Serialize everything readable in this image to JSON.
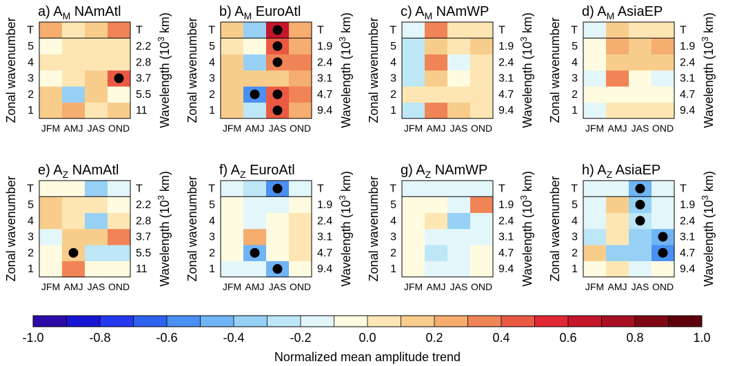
{
  "chart_data": {
    "type": "heatmap",
    "shared": {
      "x_categories": [
        "JFM",
        "AMJ",
        "JAS",
        "OND"
      ],
      "y_categories": [
        "1",
        "2",
        "3",
        "4",
        "5",
        "T"
      ],
      "ylabel_left": "Zonal wavenumber",
      "ylabel_right_prefix": "Wavelength (10",
      "ylabel_right_exp": "3",
      "ylabel_right_suffix": " km)",
      "grid": false,
      "significance_marker": "black dot"
    },
    "panels": [
      {
        "letter": "a)",
        "quantity": "A",
        "quantity_sub": "M",
        "region": "NAmAtl",
        "wavelength_labels": [
          "11",
          "5.5",
          "3.7",
          "2.8",
          "2.2",
          "T"
        ],
        "values": [
          [
            0.15,
            0.25,
            0.05,
            0.15
          ],
          [
            0.15,
            -0.35,
            0.15,
            -0.05
          ],
          [
            -0.05,
            0.05,
            0.15,
            0.45
          ],
          [
            0.05,
            0.05,
            0.05,
            0.05
          ],
          [
            -0.05,
            0.05,
            0.05,
            0.05
          ],
          [
            0.25,
            0.05,
            0.15,
            0.35
          ]
        ],
        "significant": [
          [
            false,
            false,
            false,
            false
          ],
          [
            false,
            false,
            false,
            false
          ],
          [
            false,
            false,
            false,
            true
          ],
          [
            false,
            false,
            false,
            false
          ],
          [
            false,
            false,
            false,
            false
          ],
          [
            false,
            false,
            false,
            false
          ]
        ]
      },
      {
        "letter": "b)",
        "quantity": "A",
        "quantity_sub": "M",
        "region": "EuroAtl",
        "wavelength_labels": [
          "9.4",
          "4.7",
          "3.1",
          "2.4",
          "1.9",
          "T"
        ],
        "values": [
          [
            0.15,
            -0.25,
            0.45,
            0.25
          ],
          [
            0.15,
            -0.55,
            0.45,
            0.35
          ],
          [
            0.15,
            0.15,
            0.15,
            0.25
          ],
          [
            0.15,
            -0.35,
            0.35,
            0.35
          ],
          [
            0.05,
            -0.05,
            0.45,
            0.25
          ],
          [
            0.15,
            -0.35,
            0.65,
            0.25
          ]
        ],
        "significant": [
          [
            false,
            false,
            true,
            false
          ],
          [
            false,
            true,
            true,
            false
          ],
          [
            false,
            false,
            false,
            false
          ],
          [
            false,
            false,
            true,
            false
          ],
          [
            false,
            false,
            true,
            false
          ],
          [
            false,
            false,
            true,
            false
          ]
        ]
      },
      {
        "letter": "c)",
        "quantity": "A",
        "quantity_sub": "M",
        "region": "NAmWP",
        "wavelength_labels": [
          "9.4",
          "4.7",
          "3.1",
          "2.4",
          "1.9",
          "T"
        ],
        "values": [
          [
            -0.25,
            0.35,
            0.15,
            0.05
          ],
          [
            0.05,
            0.05,
            0.05,
            0.05
          ],
          [
            -0.25,
            0.15,
            -0.05,
            0.05
          ],
          [
            -0.25,
            0.35,
            -0.15,
            0.05
          ],
          [
            -0.25,
            0.15,
            0.05,
            0.15
          ],
          [
            -0.15,
            0.35,
            0.05,
            0.05
          ]
        ],
        "significant": [
          [
            false,
            false,
            false,
            false
          ],
          [
            false,
            false,
            false,
            false
          ],
          [
            false,
            false,
            false,
            false
          ],
          [
            false,
            false,
            false,
            false
          ],
          [
            false,
            false,
            false,
            false
          ],
          [
            false,
            false,
            false,
            false
          ]
        ]
      },
      {
        "letter": "d)",
        "quantity": "A",
        "quantity_sub": "M",
        "region": "AsiaEP",
        "wavelength_labels": [
          "9.4",
          "4.7",
          "3.1",
          "2.4",
          "1.9",
          "T"
        ],
        "values": [
          [
            -0.15,
            0.05,
            0.05,
            0.05
          ],
          [
            -0.05,
            -0.05,
            -0.05,
            -0.05
          ],
          [
            -0.15,
            0.35,
            -0.05,
            -0.15
          ],
          [
            -0.05,
            0.15,
            0.15,
            0.15
          ],
          [
            -0.05,
            0.25,
            0.15,
            0.25
          ],
          [
            -0.15,
            0.15,
            0.05,
            0.05
          ]
        ],
        "significant": [
          [
            false,
            false,
            false,
            false
          ],
          [
            false,
            false,
            false,
            false
          ],
          [
            false,
            false,
            false,
            false
          ],
          [
            false,
            false,
            false,
            false
          ],
          [
            false,
            false,
            false,
            false
          ],
          [
            false,
            false,
            false,
            false
          ]
        ]
      },
      {
        "letter": "e)",
        "quantity": "A",
        "quantity_sub": "Z",
        "region": "NAmAtl",
        "wavelength_labels": [
          "11",
          "5.5",
          "3.7",
          "2.8",
          "2.2",
          "T"
        ],
        "values": [
          [
            -0.05,
            0.35,
            -0.05,
            -0.05
          ],
          [
            -0.05,
            0.15,
            -0.25,
            -0.25
          ],
          [
            -0.15,
            0.15,
            0.15,
            0.35
          ],
          [
            0.15,
            0.05,
            -0.35,
            0.05
          ],
          [
            0.15,
            0.05,
            0.05,
            -0.05
          ],
          [
            -0.05,
            -0.05,
            -0.35,
            -0.15
          ]
        ],
        "significant": [
          [
            false,
            false,
            false,
            false
          ],
          [
            false,
            true,
            false,
            false
          ],
          [
            false,
            false,
            false,
            false
          ],
          [
            false,
            false,
            false,
            false
          ],
          [
            false,
            false,
            false,
            false
          ],
          [
            false,
            false,
            false,
            false
          ]
        ]
      },
      {
        "letter": "f)",
        "quantity": "A",
        "quantity_sub": "Z",
        "region": "EuroAtl",
        "wavelength_labels": [
          "9.4",
          "4.7",
          "3.1",
          "2.4",
          "1.9",
          "T"
        ],
        "values": [
          [
            -0.15,
            -0.15,
            -0.45,
            -0.05
          ],
          [
            -0.05,
            -0.45,
            -0.05,
            0.05
          ],
          [
            -0.05,
            0.25,
            -0.05,
            0.05
          ],
          [
            -0.05,
            -0.15,
            -0.05,
            0.05
          ],
          [
            -0.05,
            -0.15,
            -0.15,
            -0.05
          ],
          [
            -0.15,
            -0.25,
            -0.55,
            -0.15
          ]
        ],
        "significant": [
          [
            false,
            false,
            true,
            false
          ],
          [
            false,
            true,
            false,
            false
          ],
          [
            false,
            false,
            false,
            false
          ],
          [
            false,
            false,
            false,
            false
          ],
          [
            false,
            false,
            false,
            false
          ],
          [
            false,
            false,
            true,
            false
          ]
        ]
      },
      {
        "letter": "g)",
        "quantity": "A",
        "quantity_sub": "Z",
        "region": "NAmWP",
        "wavelength_labels": [
          "9.4",
          "4.7",
          "3.1",
          "2.4",
          "1.9",
          "T"
        ],
        "values": [
          [
            -0.05,
            -0.15,
            -0.15,
            -0.05
          ],
          [
            -0.05,
            -0.25,
            -0.15,
            -0.05
          ],
          [
            -0.05,
            -0.15,
            -0.15,
            -0.15
          ],
          [
            -0.05,
            0.05,
            -0.35,
            -0.15
          ],
          [
            -0.05,
            -0.05,
            -0.15,
            0.35
          ],
          [
            -0.15,
            -0.15,
            -0.15,
            -0.15
          ]
        ],
        "significant": [
          [
            false,
            false,
            false,
            false
          ],
          [
            false,
            false,
            false,
            false
          ],
          [
            false,
            false,
            false,
            false
          ],
          [
            false,
            false,
            false,
            false
          ],
          [
            false,
            false,
            false,
            false
          ],
          [
            false,
            false,
            false,
            false
          ]
        ]
      },
      {
        "letter": "h)",
        "quantity": "A",
        "quantity_sub": "Z",
        "region": "AsiaEP",
        "wavelength_labels": [
          "9.4",
          "4.7",
          "3.1",
          "2.4",
          "1.9",
          "T"
        ],
        "values": [
          [
            -0.05,
            0.05,
            -0.15,
            -0.05
          ],
          [
            0.15,
            -0.35,
            -0.35,
            -0.55
          ],
          [
            -0.25,
            0.05,
            -0.35,
            -0.45
          ],
          [
            -0.15,
            0.05,
            -0.25,
            -0.15
          ],
          [
            -0.15,
            0.15,
            -0.35,
            -0.15
          ],
          [
            -0.15,
            -0.15,
            -0.45,
            -0.15
          ]
        ],
        "significant": [
          [
            false,
            false,
            false,
            false
          ],
          [
            false,
            false,
            false,
            true
          ],
          [
            false,
            false,
            false,
            true
          ],
          [
            false,
            false,
            true,
            false
          ],
          [
            false,
            false,
            true,
            false
          ],
          [
            false,
            false,
            true,
            false
          ]
        ]
      }
    ],
    "colorbar": {
      "label": "Normalized mean amplitude trend",
      "range": [
        -1.0,
        1.0
      ],
      "ticks": [
        "-1.0",
        "-0.8",
        "-0.6",
        "-0.4",
        "-0.2",
        "0.0",
        "0.2",
        "0.4",
        "0.6",
        "0.8",
        "1.0"
      ],
      "colors": [
        "#2e0aa8",
        "#1616d4",
        "#2438f0",
        "#2f62ee",
        "#4a8ff2",
        "#6fb4f5",
        "#96d1f5",
        "#bde6f6",
        "#e3f6fa",
        "#fffbe0",
        "#fde6b3",
        "#f8cd8c",
        "#f5ad70",
        "#f18456",
        "#ea5a43",
        "#e02935",
        "#c5162b",
        "#a80f23",
        "#7e0814",
        "#5e000c"
      ]
    }
  }
}
